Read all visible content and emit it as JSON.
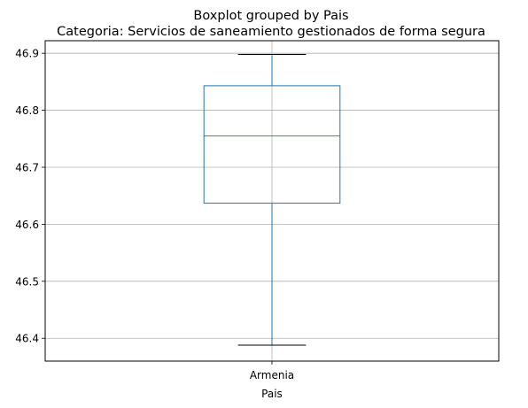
{
  "chart_data": {
    "type": "boxplot",
    "suptitle": "Boxplot grouped by Pais",
    "title": "Categoria: Servicios de saneamiento gestionados de forma segura",
    "xlabel": "Pais",
    "ylabel": "",
    "categories": [
      "Armenia"
    ],
    "boxes": [
      {
        "category": "Armenia",
        "whisker_low": 46.388,
        "q1": 46.637,
        "median": 46.755,
        "q3": 46.843,
        "whisker_high": 46.898
      }
    ],
    "ylim": [
      46.36,
      46.922
    ],
    "yticks": [
      46.4,
      46.5,
      46.6,
      46.7,
      46.8,
      46.9
    ],
    "ytick_labels": [
      "46.4",
      "46.5",
      "46.6",
      "46.7",
      "46.8",
      "46.9"
    ],
    "grid": true,
    "colors": {
      "box": "#1f77b4",
      "median": "#2ca02c",
      "cap": "#000000",
      "grid": "#b0b0b0"
    }
  }
}
